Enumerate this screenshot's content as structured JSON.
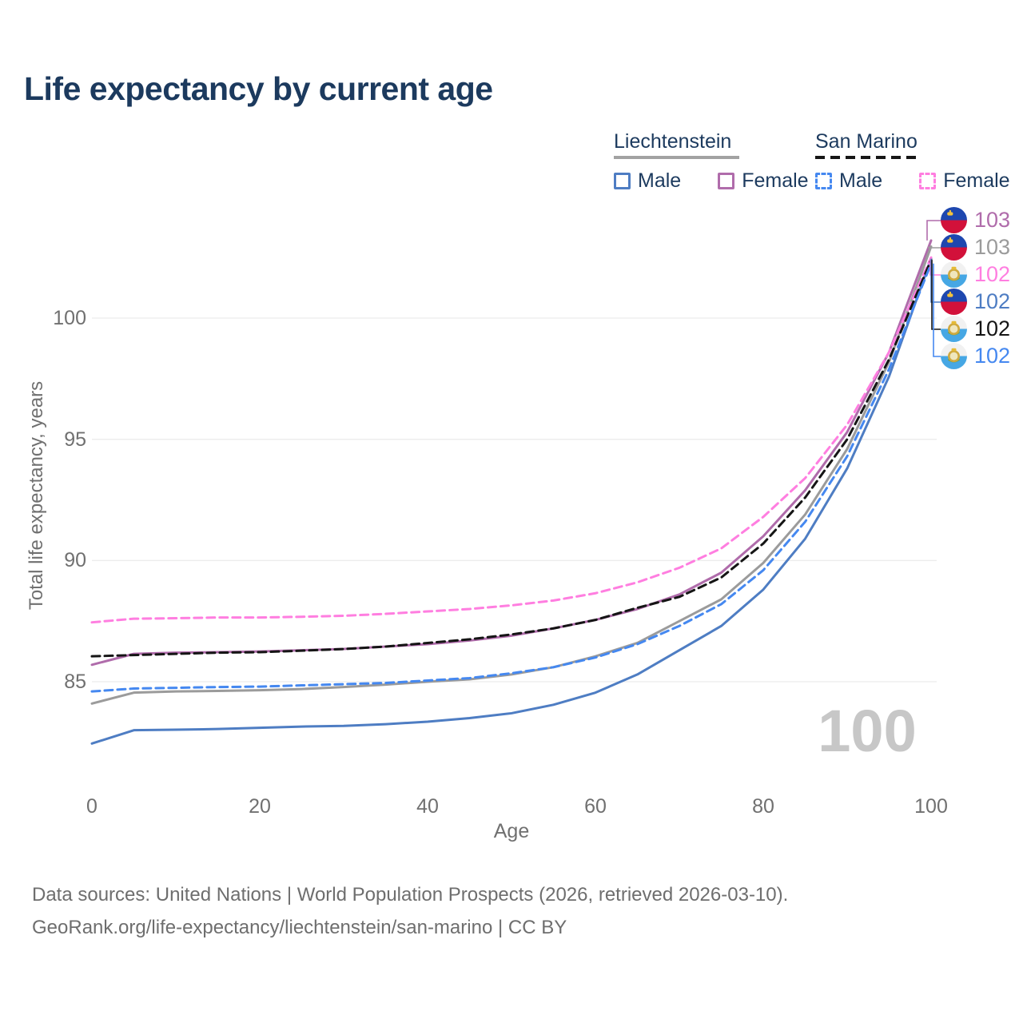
{
  "title": "Life expectancy by current age",
  "legend": {
    "groups": [
      {
        "name": "Liechtenstein",
        "underline_style": "solid",
        "underline_color": "#a2a2a2",
        "items": [
          {
            "label": "Male",
            "color": "#4e7dc3",
            "dashed": false
          },
          {
            "label": "Female",
            "color": "#b06cab",
            "dashed": false
          }
        ]
      },
      {
        "name": "San Marino",
        "underline_style": "dashed",
        "underline_color": "#161616",
        "items": [
          {
            "label": "Male",
            "color": "#4588f0",
            "dashed": true
          },
          {
            "label": "Female",
            "color": "#ff7ee0",
            "dashed": true
          }
        ]
      }
    ]
  },
  "axes": {
    "y_title": "Total life expectancy, years",
    "x_title": "Age",
    "y_ticks": [
      85,
      90,
      95,
      100
    ],
    "x_ticks": [
      0,
      20,
      40,
      60,
      80,
      100
    ]
  },
  "watermark": "100",
  "footer": {
    "line1": "Data sources: United Nations | World Population Prospects (2026, retrieved 2026-03-10).",
    "line2": "GeoRank.org/life-expectancy/liechtenstein/san-marino | CC BY"
  },
  "colors": {
    "title_text": "#1c3a5e",
    "axis_text": "#707070",
    "grid": "#ececec",
    "watermark": "#c7c7c7",
    "footer_text": "#6e6e6e"
  },
  "chart_data": {
    "type": "line",
    "title": "Life expectancy by current age",
    "xlabel": "Age",
    "ylabel": "Total life expectancy, years",
    "xlim": [
      0,
      100
    ],
    "ylim": [
      82,
      104
    ],
    "x_tick_labels": [
      0,
      20,
      40,
      60,
      80,
      100
    ],
    "y_tick_labels": [
      85,
      90,
      95,
      100
    ],
    "grid": "horizontal",
    "legend_position": "top-right",
    "x": [
      0,
      5,
      10,
      15,
      20,
      25,
      30,
      35,
      40,
      45,
      50,
      55,
      60,
      65,
      70,
      75,
      80,
      85,
      90,
      95,
      100
    ],
    "series": [
      {
        "name": "Liechtenstein Female",
        "country": "Liechtenstein",
        "sex": "Female",
        "line": "solid",
        "color": "#b06cab",
        "flag": "liechtenstein",
        "end_label": "103",
        "values": [
          85.7,
          86.15,
          86.2,
          86.22,
          86.25,
          86.3,
          86.35,
          86.45,
          86.55,
          86.7,
          86.9,
          87.2,
          87.55,
          88.0,
          88.6,
          89.5,
          91.0,
          92.9,
          95.3,
          98.6,
          103.2
        ]
      },
      {
        "name": "Liechtenstein Total",
        "country": "Liechtenstein",
        "sex": "Both",
        "line": "solid",
        "color": "#9b9b9b",
        "flag": "liechtenstein",
        "end_label": "103",
        "values": [
          84.1,
          84.55,
          84.6,
          84.62,
          84.65,
          84.7,
          84.78,
          84.88,
          85.0,
          85.1,
          85.3,
          85.6,
          86.05,
          86.6,
          87.5,
          88.4,
          89.9,
          91.9,
          94.6,
          98.2,
          102.95
        ]
      },
      {
        "name": "San Marino Female",
        "country": "San Marino",
        "sex": "Female",
        "line": "dashed",
        "color": "#ff7ee0",
        "flag": "san-marino",
        "end_label": "102",
        "values": [
          87.45,
          87.6,
          87.62,
          87.65,
          87.65,
          87.68,
          87.72,
          87.8,
          87.9,
          88.0,
          88.15,
          88.35,
          88.65,
          89.1,
          89.7,
          90.5,
          91.8,
          93.4,
          95.6,
          98.6,
          102.5
        ]
      },
      {
        "name": "Liechtenstein Male",
        "country": "Liechtenstein",
        "sex": "Male",
        "line": "solid",
        "color": "#4e7dc3",
        "flag": "liechtenstein",
        "end_label": "102",
        "values": [
          82.45,
          83.0,
          83.02,
          83.05,
          83.1,
          83.15,
          83.18,
          83.25,
          83.35,
          83.5,
          83.7,
          84.05,
          84.55,
          85.3,
          86.3,
          87.3,
          88.8,
          90.9,
          93.8,
          97.6,
          102.45
        ]
      },
      {
        "name": "San Marino Total",
        "country": "San Marino",
        "sex": "Both",
        "line": "dashed",
        "color": "#151515",
        "flag": "san-marino",
        "end_label": "102",
        "values": [
          86.05,
          86.1,
          86.15,
          86.2,
          86.22,
          86.28,
          86.35,
          86.45,
          86.6,
          86.75,
          86.95,
          87.2,
          87.55,
          88.05,
          88.5,
          89.3,
          90.7,
          92.6,
          95.0,
          98.3,
          102.4
        ]
      },
      {
        "name": "San Marino Male",
        "country": "San Marino",
        "sex": "Male",
        "line": "dashed",
        "color": "#4588f0",
        "flag": "san-marino",
        "end_label": "102",
        "values": [
          84.6,
          84.72,
          84.75,
          84.78,
          84.8,
          84.85,
          84.9,
          84.95,
          85.05,
          85.15,
          85.35,
          85.6,
          86.0,
          86.55,
          87.3,
          88.2,
          89.6,
          91.6,
          94.3,
          97.9,
          102.25
        ]
      }
    ]
  }
}
